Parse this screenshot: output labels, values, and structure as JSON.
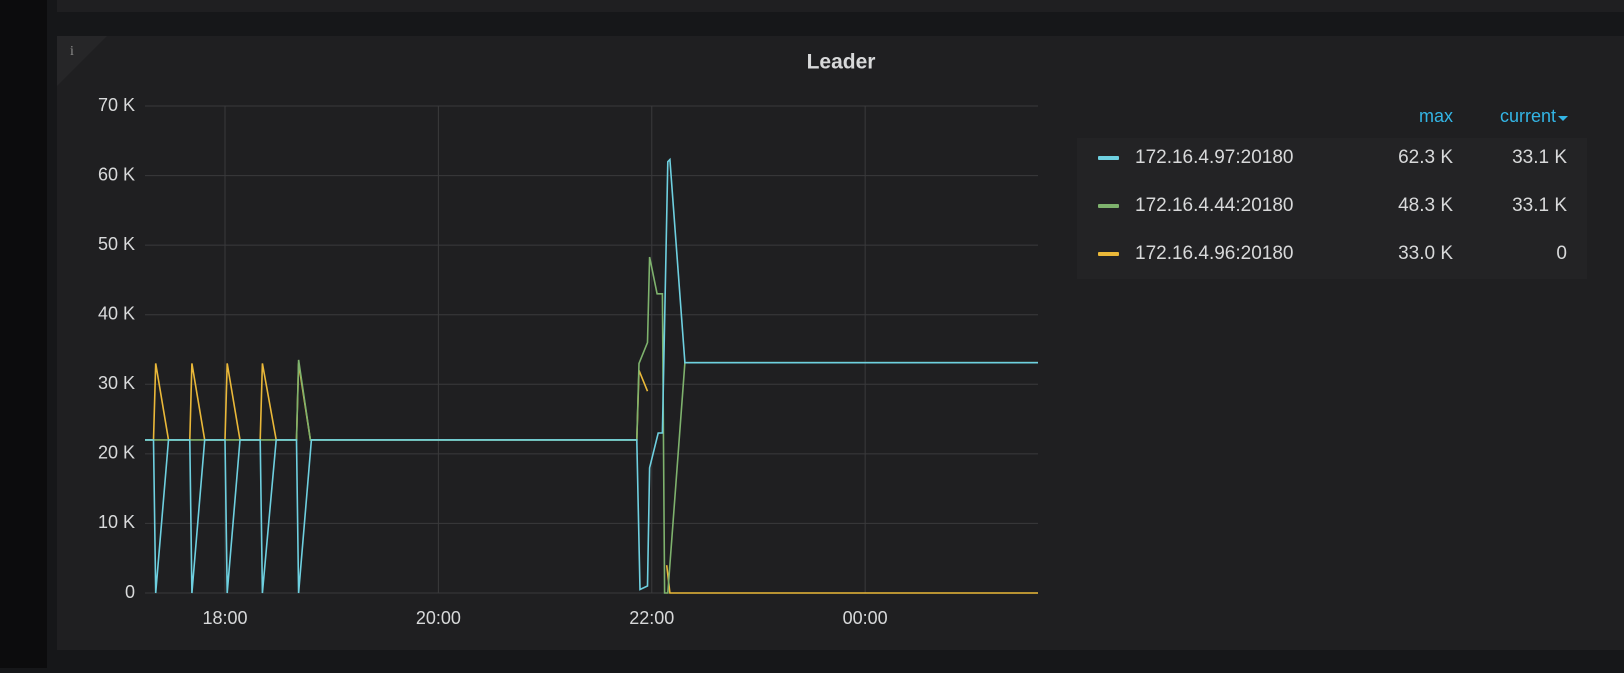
{
  "chart_data": {
    "type": "line",
    "title": "Leader",
    "xlim": [
      17.25,
      25.62
    ],
    "xticks": [
      {
        "value": 18,
        "label": "18:00"
      },
      {
        "value": 20,
        "label": "20:00"
      },
      {
        "value": 22,
        "label": "22:00"
      },
      {
        "value": 24,
        "label": "00:00"
      }
    ],
    "ylim": [
      0,
      70000
    ],
    "yticks": [
      0,
      {
        "value": 10000,
        "label": "10 K"
      },
      {
        "value": 20000,
        "label": "20 K"
      },
      {
        "value": 30000,
        "label": "30 K"
      },
      {
        "value": 40000,
        "label": "40 K"
      },
      {
        "value": 50000,
        "label": "50 K"
      },
      {
        "value": 60000,
        "label": "60 K"
      },
      {
        "value": 70000,
        "label": "70 K"
      }
    ],
    "grid": true,
    "legend_columns": [
      "max",
      "current"
    ],
    "series": [
      {
        "name": "172.16.4.96:20180",
        "color": "#eab839",
        "x": [
          17.25,
          17.33,
          17.35,
          17.47,
          17.67,
          17.69,
          17.81,
          18.0,
          18.02,
          18.14,
          18.33,
          18.35,
          18.48,
          18.67,
          18.69,
          18.8,
          21.86,
          21.88,
          21.96,
          22.0,
          22.14,
          22.17,
          25.62
        ],
        "values": [
          22000,
          22000,
          33000,
          22000,
          22000,
          33000,
          22000,
          22000,
          33000,
          22000,
          22000,
          33000,
          22000,
          22000,
          33000,
          22000,
          22000,
          32000,
          29000,
          null,
          4000,
          0,
          0
        ],
        "legend_values": [
          "33.0 K",
          "0"
        ]
      },
      {
        "name": "172.16.4.44:20180",
        "color": "#7eb26d",
        "x": [
          17.25,
          18.67,
          18.69,
          18.8,
          21.86,
          21.88,
          21.96,
          21.98,
          22.05,
          22.1,
          22.12,
          22.15,
          22.31,
          25.62
        ],
        "values": [
          22000,
          22000,
          33500,
          22000,
          22000,
          33000,
          36000,
          48300,
          43000,
          43000,
          0,
          0,
          33100,
          33100
        ],
        "legend_values": [
          "48.3 K",
          "33.1 K"
        ]
      },
      {
        "name": "172.16.4.97:20180",
        "color": "#6ed0e0",
        "x": [
          17.25,
          17.33,
          17.35,
          17.47,
          17.67,
          17.69,
          17.81,
          18.0,
          18.02,
          18.14,
          18.33,
          18.35,
          18.48,
          18.67,
          18.69,
          18.81,
          21.86,
          21.89,
          21.96,
          21.98,
          22.06,
          22.1,
          22.15,
          22.17,
          22.31,
          25.62
        ],
        "values": [
          22000,
          22000,
          0,
          22000,
          22000,
          0,
          22000,
          22000,
          0,
          22000,
          22000,
          0,
          22000,
          22000,
          0,
          22000,
          22000,
          500,
          1000,
          18000,
          23000,
          23000,
          62000,
          62300,
          33100,
          33100
        ],
        "legend_values": [
          "62.3 K",
          "33.1 K"
        ]
      }
    ]
  }
}
